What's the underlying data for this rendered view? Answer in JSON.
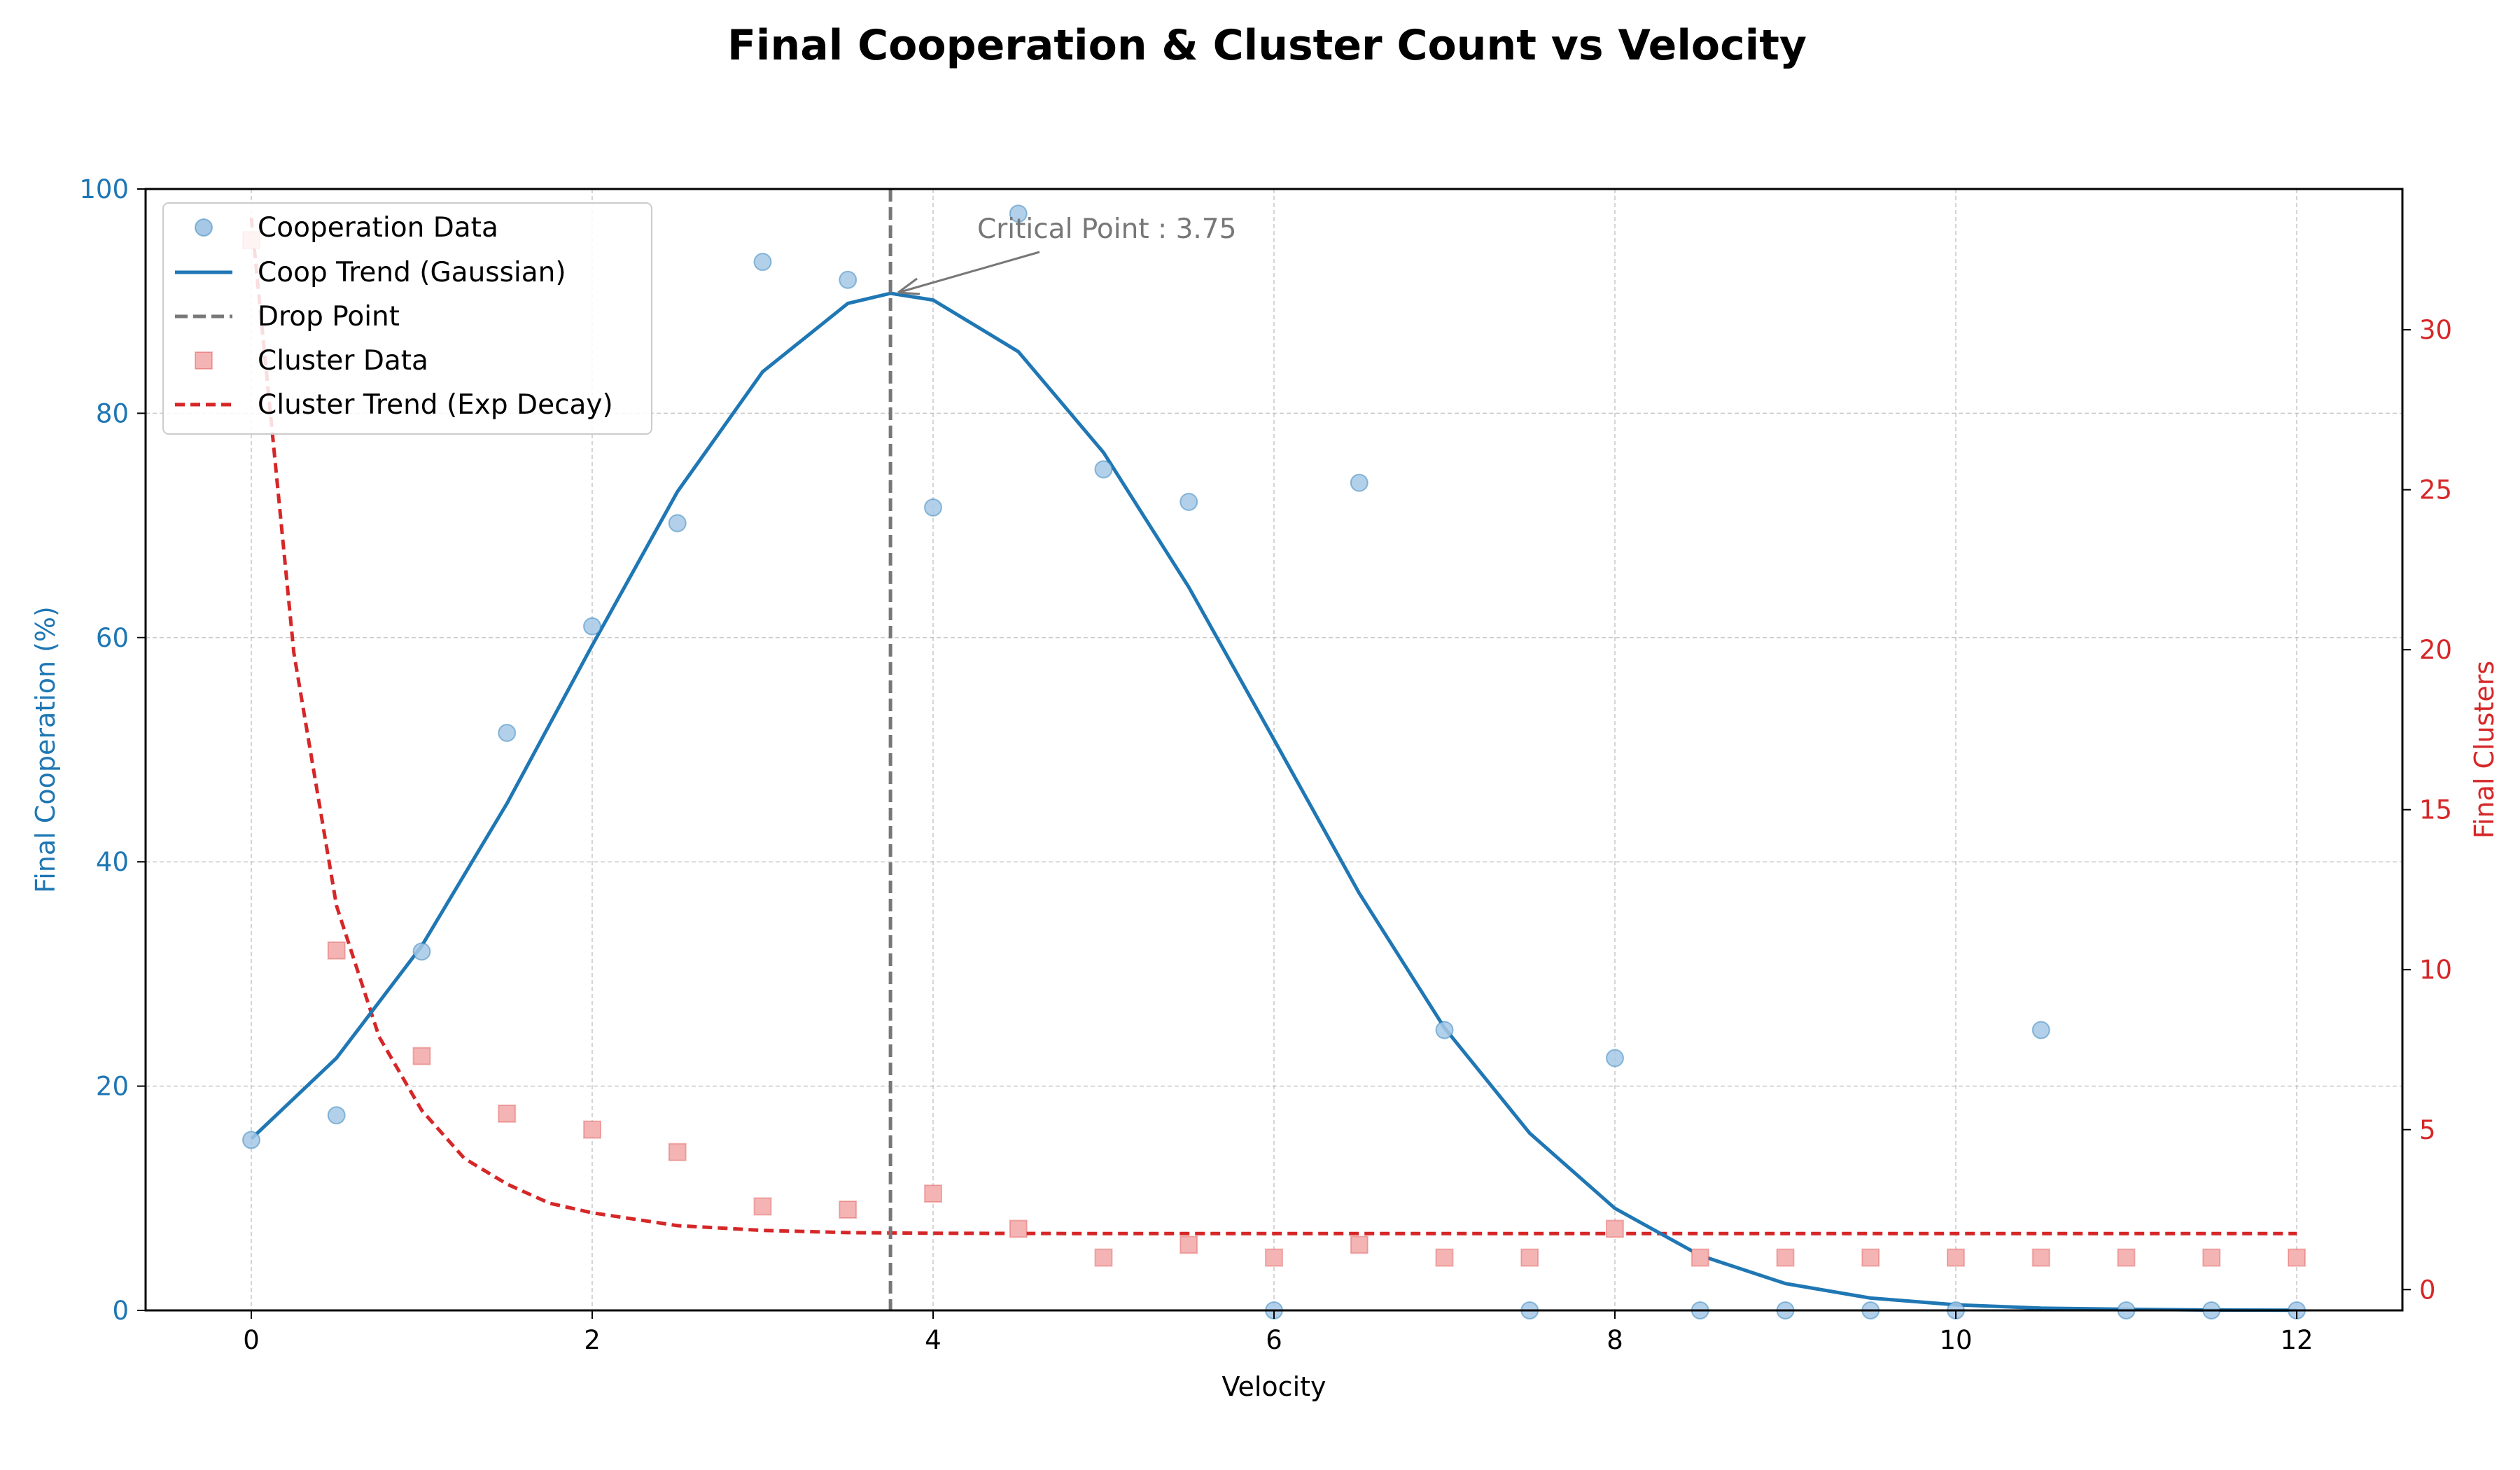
{
  "chart_data": {
    "type": "scatter",
    "title": "Final Cooperation & Cluster Count vs Velocity",
    "xlabel": "Velocity",
    "ylabel_left": "Final Cooperation (%)",
    "ylabel_right": "Final Clusters",
    "xlim": [
      -0.62,
      12.62
    ],
    "ylim_left": [
      0,
      100
    ],
    "ylim_right": [
      -0.65,
      34.4
    ],
    "xticks": [
      "0",
      "2",
      "4",
      "6",
      "8",
      "10",
      "12"
    ],
    "yticks_left": [
      "0",
      "20",
      "40",
      "60",
      "80",
      "100"
    ],
    "yticks_right": [
      "0",
      "5",
      "10",
      "15",
      "20",
      "25",
      "30"
    ],
    "grid": true,
    "legend_position": "upper-left",
    "colors": {
      "coop": "#1f77b4",
      "coop_points": "#a6c8e6",
      "cluster": "#d62728",
      "cluster_points": "#f4b4b4",
      "drop": "#777777"
    },
    "series": [
      {
        "name": "Cooperation Data",
        "axis": "left",
        "kind": "points",
        "x": [
          0,
          0.5,
          1,
          1.5,
          2,
          2.5,
          3,
          3.5,
          4,
          4.5,
          5,
          5.5,
          6,
          6.5,
          7,
          7.5,
          8,
          8.5,
          9,
          9.5,
          10,
          10.5,
          11,
          11.5,
          12
        ],
        "y": [
          15.2,
          17.4,
          32,
          51.5,
          61,
          70.2,
          93.5,
          91.9,
          71.6,
          97.8,
          75,
          72.1,
          0,
          73.8,
          25,
          0,
          22.5,
          0,
          0,
          0,
          0,
          25,
          0,
          0,
          0
        ]
      },
      {
        "name": "Coop Trend (Gaussian)",
        "axis": "left",
        "kind": "line",
        "x": [
          0,
          0.5,
          1,
          1.5,
          2,
          2.5,
          3,
          3.5,
          3.75,
          4,
          4.5,
          5,
          5.5,
          6,
          6.5,
          7,
          7.5,
          8,
          8.5,
          9,
          9.5,
          10,
          10.5,
          11,
          11.5,
          12
        ],
        "y": [
          15.3,
          22.5,
          32.5,
          45.2,
          59.3,
          73.0,
          83.7,
          89.8,
          90.7,
          90.1,
          85.5,
          76.5,
          64.5,
          50.9,
          37.2,
          25.2,
          15.8,
          9.1,
          4.9,
          2.4,
          1.1,
          0.5,
          0.2,
          0.1,
          0.03,
          0.01
        ]
      },
      {
        "name": "Cluster Data",
        "axis": "right",
        "kind": "points",
        "x": [
          0,
          0.5,
          1,
          1.5,
          2,
          2.5,
          3,
          3.5,
          4,
          4.5,
          5,
          5.5,
          6,
          6.5,
          7,
          7.5,
          8,
          8.5,
          9,
          9.5,
          10,
          10.5,
          11,
          11.5,
          12
        ],
        "y": [
          32.8,
          10.6,
          7.3,
          5.5,
          5.0,
          4.3,
          2.6,
          2.5,
          3.0,
          1.9,
          1.0,
          1.4,
          1.0,
          1.4,
          1.0,
          1.0,
          1.9,
          1.0,
          1.0,
          1.0,
          1.0,
          1.0,
          1.0,
          1.0,
          1.0
        ]
      },
      {
        "name": "Cluster Trend (Exp Decay)",
        "axis": "right",
        "kind": "dashed-line",
        "x": [
          0,
          0.25,
          0.5,
          0.75,
          1,
          1.25,
          1.5,
          1.75,
          2,
          2.5,
          3,
          3.5,
          4,
          5,
          6,
          8,
          10,
          12
        ],
        "y": [
          33.5,
          19.9,
          12.0,
          7.9,
          5.6,
          4.1,
          3.3,
          2.7,
          2.4,
          2.0,
          1.85,
          1.78,
          1.76,
          1.75,
          1.75,
          1.75,
          1.75,
          1.75
        ]
      },
      {
        "name": "Drop Point",
        "axis": "left",
        "kind": "vline",
        "x": 3.75
      }
    ],
    "annotation": {
      "text": "Critical Point : 3.75",
      "target_x": 3.75,
      "target_y": 90.7
    }
  }
}
